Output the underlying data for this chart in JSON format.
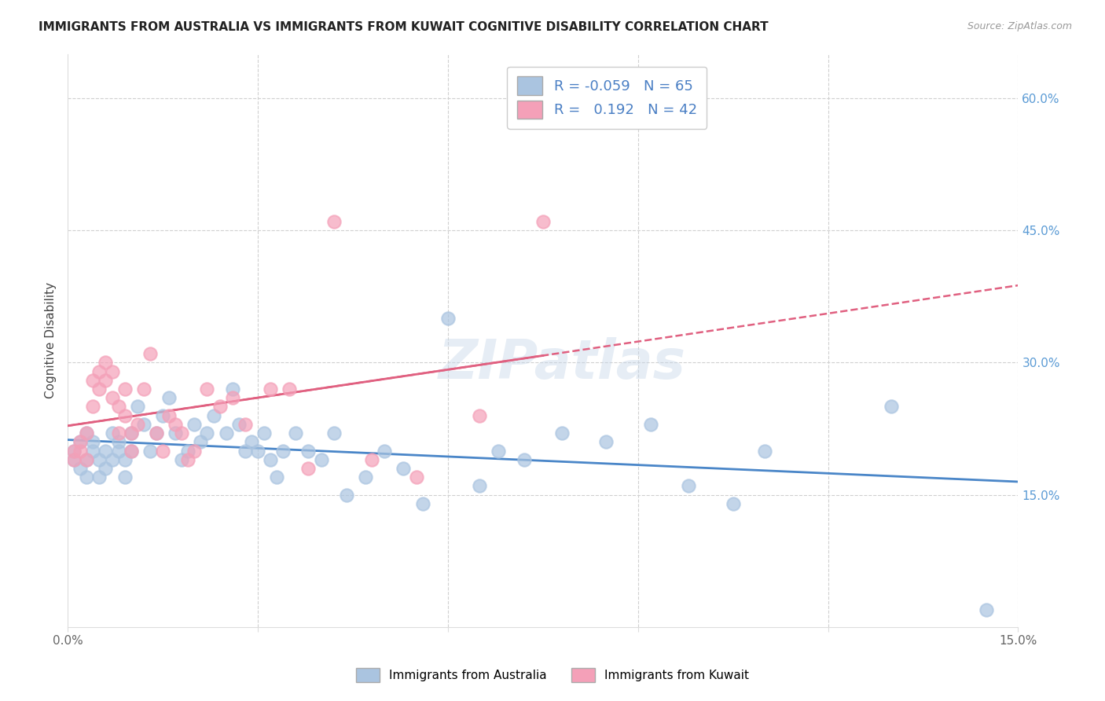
{
  "title": "IMMIGRANTS FROM AUSTRALIA VS IMMIGRANTS FROM KUWAIT COGNITIVE DISABILITY CORRELATION CHART",
  "source": "Source: ZipAtlas.com",
  "ylabel": "Cognitive Disability",
  "xmin": 0.0,
  "xmax": 0.15,
  "ymin": 0.0,
  "ymax": 0.65,
  "x_ticks": [
    0.0,
    0.03,
    0.06,
    0.09,
    0.12,
    0.15
  ],
  "x_tick_labels": [
    "0.0%",
    "",
    "",
    "",
    "",
    "15.0%"
  ],
  "y_ticks_right": [
    0.15,
    0.3,
    0.45,
    0.6
  ],
  "y_tick_labels_right": [
    "15.0%",
    "30.0%",
    "45.0%",
    "60.0%"
  ],
  "color_australia": "#aac4e0",
  "color_kuwait": "#f4a0b8",
  "r_australia": -0.059,
  "n_australia": 65,
  "r_kuwait": 0.192,
  "n_kuwait": 42,
  "legend_label_australia": "Immigrants from Australia",
  "legend_label_kuwait": "Immigrants from Kuwait",
  "watermark": "ZIPatlas",
  "australia_x": [
    0.001,
    0.001,
    0.002,
    0.002,
    0.003,
    0.003,
    0.003,
    0.004,
    0.004,
    0.005,
    0.005,
    0.006,
    0.006,
    0.007,
    0.007,
    0.008,
    0.008,
    0.009,
    0.009,
    0.01,
    0.01,
    0.011,
    0.012,
    0.013,
    0.014,
    0.015,
    0.016,
    0.017,
    0.018,
    0.019,
    0.02,
    0.021,
    0.022,
    0.023,
    0.025,
    0.026,
    0.027,
    0.028,
    0.029,
    0.03,
    0.031,
    0.032,
    0.033,
    0.034,
    0.036,
    0.038,
    0.04,
    0.042,
    0.044,
    0.047,
    0.05,
    0.053,
    0.056,
    0.06,
    0.065,
    0.068,
    0.072,
    0.078,
    0.085,
    0.092,
    0.098,
    0.105,
    0.11,
    0.13,
    0.145
  ],
  "australia_y": [
    0.2,
    0.19,
    0.21,
    0.18,
    0.22,
    0.19,
    0.17,
    0.21,
    0.2,
    0.19,
    0.17,
    0.2,
    0.18,
    0.22,
    0.19,
    0.21,
    0.2,
    0.19,
    0.17,
    0.2,
    0.22,
    0.25,
    0.23,
    0.2,
    0.22,
    0.24,
    0.26,
    0.22,
    0.19,
    0.2,
    0.23,
    0.21,
    0.22,
    0.24,
    0.22,
    0.27,
    0.23,
    0.2,
    0.21,
    0.2,
    0.22,
    0.19,
    0.17,
    0.2,
    0.22,
    0.2,
    0.19,
    0.22,
    0.15,
    0.17,
    0.2,
    0.18,
    0.14,
    0.35,
    0.16,
    0.2,
    0.19,
    0.22,
    0.21,
    0.23,
    0.16,
    0.14,
    0.2,
    0.25,
    0.02
  ],
  "kuwait_x": [
    0.001,
    0.001,
    0.002,
    0.002,
    0.003,
    0.003,
    0.004,
    0.004,
    0.005,
    0.005,
    0.006,
    0.006,
    0.007,
    0.007,
    0.008,
    0.008,
    0.009,
    0.009,
    0.01,
    0.01,
    0.011,
    0.012,
    0.013,
    0.014,
    0.015,
    0.016,
    0.017,
    0.018,
    0.019,
    0.02,
    0.022,
    0.024,
    0.026,
    0.028,
    0.032,
    0.035,
    0.038,
    0.042,
    0.048,
    0.055,
    0.065,
    0.075
  ],
  "kuwait_y": [
    0.2,
    0.19,
    0.21,
    0.2,
    0.22,
    0.19,
    0.25,
    0.28,
    0.27,
    0.29,
    0.28,
    0.3,
    0.26,
    0.29,
    0.22,
    0.25,
    0.27,
    0.24,
    0.2,
    0.22,
    0.23,
    0.27,
    0.31,
    0.22,
    0.2,
    0.24,
    0.23,
    0.22,
    0.19,
    0.2,
    0.27,
    0.25,
    0.26,
    0.23,
    0.27,
    0.27,
    0.18,
    0.46,
    0.19,
    0.17,
    0.24,
    0.46
  ]
}
